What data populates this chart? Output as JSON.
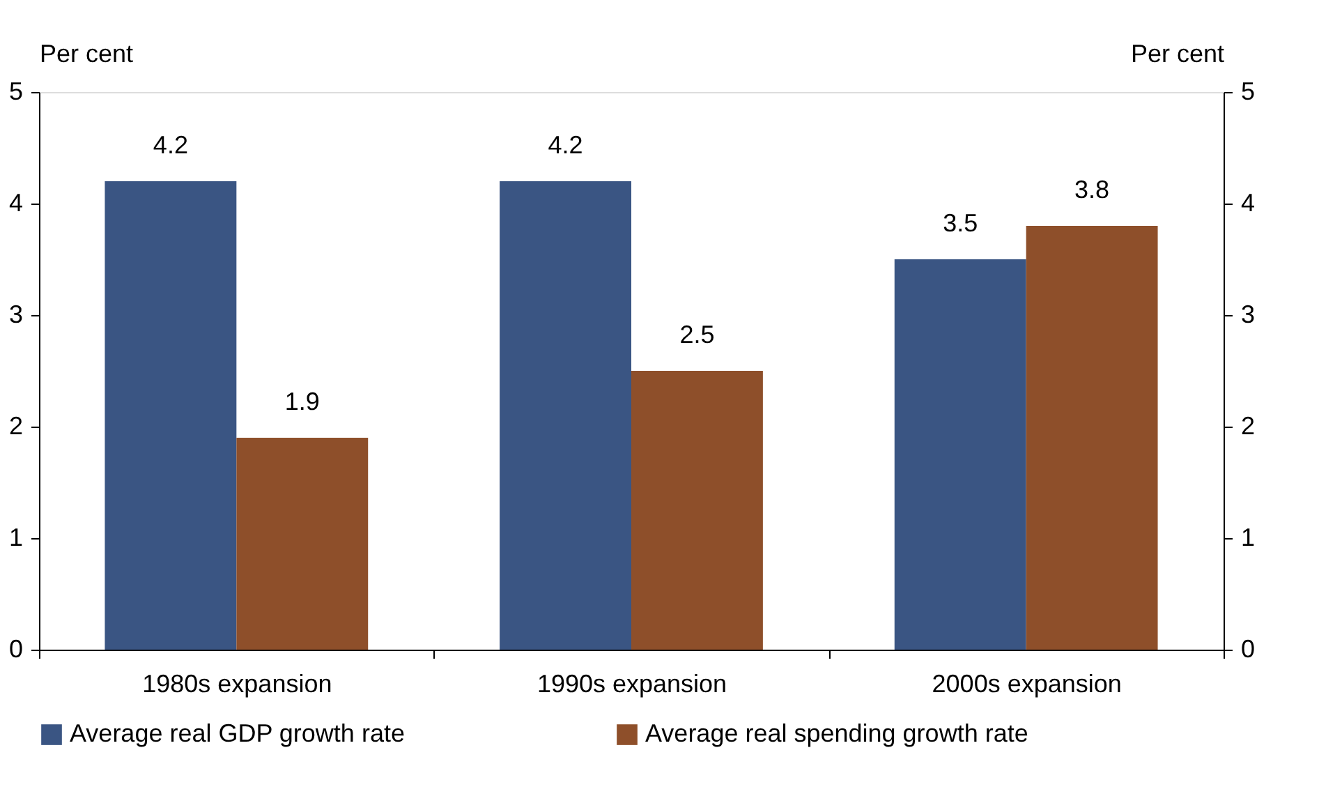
{
  "chart_data": {
    "type": "bar",
    "categories": [
      "1980s expansion",
      "1990s expansion",
      "2000s expansion"
    ],
    "series": [
      {
        "name": "Average real GDP growth rate",
        "color": "#3a5583",
        "values": [
          4.2,
          4.2,
          3.5
        ]
      },
      {
        "name": "Average real spending growth rate",
        "color": "#8e4f2a",
        "values": [
          1.9,
          2.5,
          3.8
        ]
      }
    ],
    "ylabel": "Per cent",
    "y2label": "Per cent",
    "ylim": [
      0,
      5
    ],
    "yticks": [
      0,
      1,
      2,
      3,
      4,
      5
    ],
    "y2lim": [
      0,
      5
    ],
    "y2ticks": [
      0,
      1,
      2,
      3,
      4,
      5
    ],
    "data_labels": true,
    "legend": "bottom",
    "grid": false
  }
}
